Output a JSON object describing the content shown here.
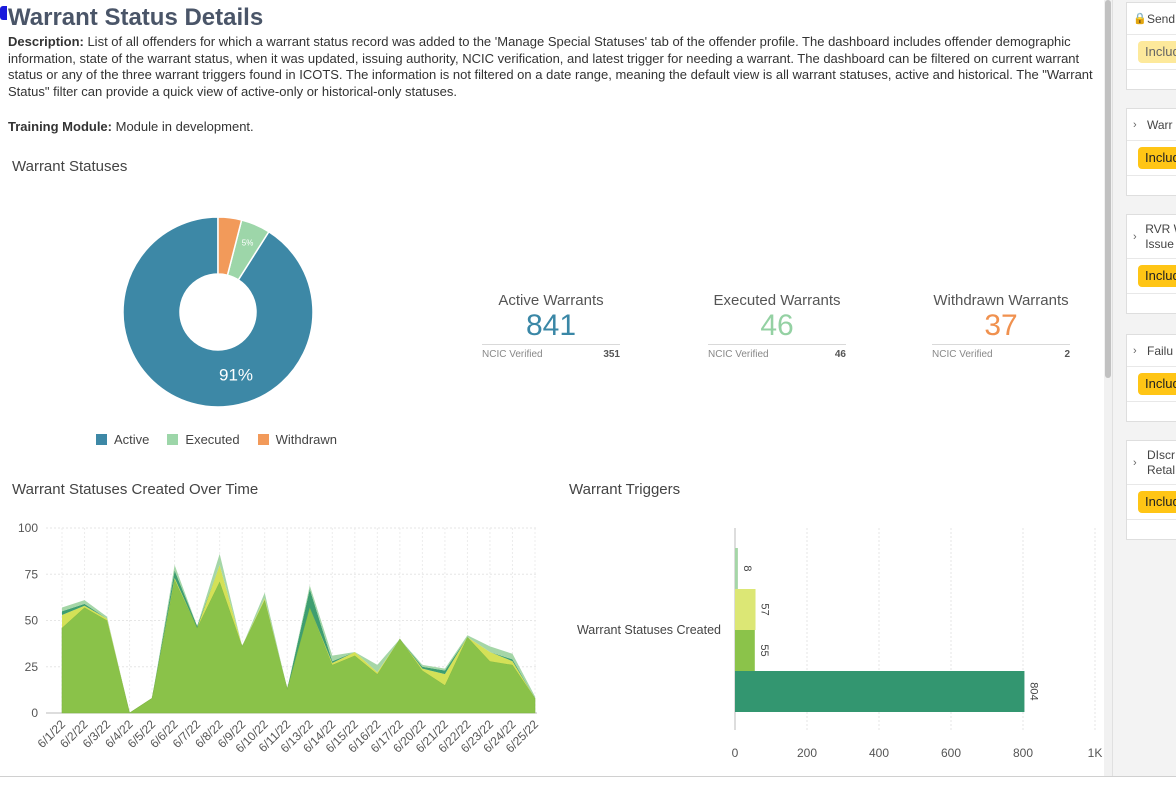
{
  "page": {
    "title": "Warrant Status Details",
    "description_label": "Description:",
    "description_text": " List of all offenders for which a warrant status record was added to the 'Manage Special Statuses' tab of the offender profile. The dashboard includes offender demographic information, state of the warrant status, when it was updated, issuing authority, NCIC verification, and latest trigger for needing a warrant. The dashboard can be filtered on current warrant status or any of the three warrant triggers found in ICOTS. The information is not filtered on a date range, meaning the default view is all warrant statuses, active and historical. The \"Warrant Status\" filter can provide a quick view of active-only or historical-only statuses.",
    "training_label": "Training Module:",
    "training_text": " Module in development."
  },
  "sections": {
    "statuses": "Warrant Statuses",
    "over_time": "Warrant Statuses Created Over Time",
    "triggers": "Warrant Triggers"
  },
  "kpis": [
    {
      "title": "Active Warrants",
      "value": "841",
      "footer_label": "NCIC Verified",
      "footer_value": "351",
      "color": "#3a87a6"
    },
    {
      "title": "Executed Warrants",
      "value": "46",
      "footer_label": "NCIC Verified",
      "footer_value": "46",
      "color": "#94d1a3"
    },
    {
      "title": "Withdrawn Warrants",
      "value": "37",
      "footer_label": "NCIC Verified",
      "footer_value": "2",
      "color": "#f0914f"
    }
  ],
  "legend": [
    {
      "label": "Active",
      "color": "#3d88a6"
    },
    {
      "label": "Executed",
      "color": "#9dd6a9"
    },
    {
      "label": "Withdrawn",
      "color": "#f29a5a"
    }
  ],
  "chart_data": [
    {
      "type": "pie",
      "title": "Warrant Statuses",
      "categories": [
        "Active",
        "Executed",
        "Withdrawn"
      ],
      "values": [
        841,
        46,
        37
      ],
      "data_labels": [
        "91%",
        "5%",
        ""
      ],
      "colors": [
        "#3d88a6",
        "#9dd6a9",
        "#f29a5a"
      ],
      "legend": "bottom"
    },
    {
      "type": "area",
      "title": "Warrant Statuses Created Over Time",
      "categories": [
        "6/1/22",
        "6/2/22",
        "6/3/22",
        "6/4/22",
        "6/5/22",
        "6/6/22",
        "6/7/22",
        "6/8/22",
        "6/9/22",
        "6/10/22",
        "6/11/22",
        "6/13/22",
        "6/14/22",
        "6/15/22",
        "6/16/22",
        "6/17/22",
        "6/20/22",
        "6/21/22",
        "6/22/22",
        "6/23/22",
        "6/24/22",
        "6/25/22"
      ],
      "tick_labels": [
        "6/1/22",
        "6/2/22",
        "6/3/22",
        "6/4/22",
        "6/5/22",
        "6/6/22",
        "6/7/22",
        "6/8/22",
        "6/9/22",
        "6/10/22",
        "6/11/22",
        "6/13/22",
        "6/14/22",
        "6/15/22",
        "6/16/22",
        "6/17/22",
        "6/20/22",
        "6/21/22",
        "6/22/22",
        "6/23/22",
        "6/24/22",
        "6/25/22"
      ],
      "series": [
        {
          "color": "#8ac249",
          "values": [
            46,
            57,
            50,
            0,
            8,
            72,
            46,
            71,
            36,
            61,
            13,
            57,
            26,
            31,
            21,
            40,
            23,
            15,
            41,
            28,
            26,
            8
          ]
        },
        {
          "color": "#d4e157",
          "values": [
            7,
            1,
            1,
            0,
            0,
            1,
            0,
            9,
            0,
            1,
            0,
            0,
            1,
            2,
            1,
            0,
            1,
            6,
            0,
            5,
            2,
            0
          ]
        },
        {
          "color": "#3e9e70",
          "values": [
            2,
            1,
            0,
            0,
            0,
            4,
            1,
            0,
            0,
            0,
            0,
            10,
            1,
            0,
            0,
            0,
            1,
            2,
            0,
            0,
            1,
            0
          ]
        },
        {
          "color": "#a5d6a7",
          "values": [
            2,
            2,
            1,
            0,
            0,
            3,
            0,
            6,
            0,
            3,
            0,
            2,
            3,
            0,
            4,
            0,
            1,
            1,
            1,
            3,
            3,
            1
          ]
        }
      ],
      "ylim": [
        0,
        100
      ],
      "yticks": [
        0,
        25,
        50,
        75,
        100
      ],
      "grid": true
    },
    {
      "type": "bar",
      "orientation": "horizontal",
      "title": "Warrant Triggers",
      "categories": [
        "Warrant Statuses Created"
      ],
      "series": [
        {
          "color": "#a5d6a7",
          "values": [
            8
          ]
        },
        {
          "color": "#dce775",
          "values": [
            57
          ]
        },
        {
          "color": "#8bc34a",
          "values": [
            55
          ]
        },
        {
          "color": "#339670",
          "values": [
            804
          ]
        }
      ],
      "xlim": [
        0,
        1000
      ],
      "xtick_labels": [
        "0",
        "200",
        "400",
        "600",
        "800",
        "1K"
      ],
      "grid": true
    }
  ],
  "sidebar": {
    "cards": [
      {
        "icon": "lock-icon",
        "label": "Send",
        "label2": "",
        "pill": "Includ",
        "pill_style": "light"
      },
      {
        "icon": "chevron-right-icon",
        "label": "Warr",
        "label2": "",
        "pill": "Includ",
        "pill_style": "normal"
      },
      {
        "icon": "chevron-right-icon",
        "label": "RVR W",
        "label2": "Issue",
        "pill": "Includ",
        "pill_style": "normal"
      },
      {
        "icon": "chevron-right-icon",
        "label": "Failu",
        "label2": "",
        "pill": "Includ",
        "pill_style": "normal"
      },
      {
        "icon": "chevron-right-icon",
        "label": "DIscr",
        "label2": "Retal",
        "pill": "Includ",
        "pill_style": "normal"
      }
    ]
  }
}
